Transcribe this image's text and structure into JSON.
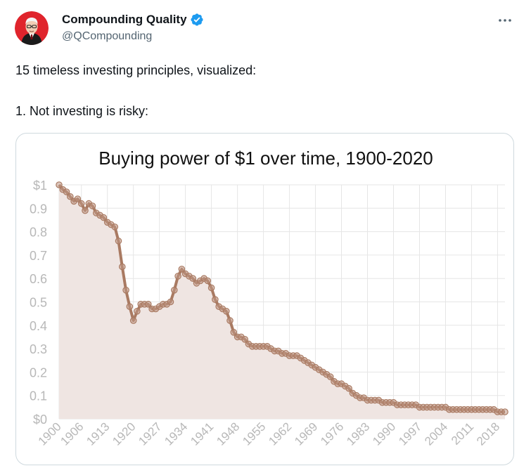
{
  "author": {
    "name": "Compounding Quality",
    "handle": "@QCompounding",
    "verified": true,
    "avatar_icon": "buffett-portrait-avatar",
    "avatar_bg": "#e0242c"
  },
  "menu": {
    "icon": "more-horizontal-icon"
  },
  "tweet": {
    "line1": "15 timeless investing principles, visualized:",
    "line2": "1.  Not investing is risky:"
  },
  "colors": {
    "line": "#a97a62",
    "marker": "#c09785",
    "area": "#efe5e2",
    "grid": "#e6e6e6",
    "tick_text": "#b8b8b8",
    "verified": "#1d9bf0"
  },
  "chart_data": {
    "type": "area",
    "title": "Buying power of $1 over time, 1900-2020",
    "xlabel": "",
    "ylabel": "",
    "xlim": [
      1900,
      2020
    ],
    "ylim": [
      0,
      1
    ],
    "grid": true,
    "legend": "none",
    "y_ticks": [
      "$0",
      "0.1",
      "0.2",
      "0.3",
      "0.4",
      "0.5",
      "0.6",
      "0.7",
      "0.8",
      "0.9",
      "$1"
    ],
    "x_ticks": [
      "1900",
      "1906",
      "1913",
      "1920",
      "1927",
      "1934",
      "1941",
      "1948",
      "1955",
      "1962",
      "1969",
      "1976",
      "1983",
      "1990",
      "1997",
      "2004",
      "2011",
      "2018"
    ],
    "series": [
      {
        "x": [
          1900,
          1901,
          1902,
          1903,
          1904,
          1905,
          1906,
          1907,
          1908,
          1909,
          1910,
          1911,
          1912,
          1913,
          1914,
          1915,
          1916,
          1917,
          1918,
          1919,
          1920,
          1921,
          1922,
          1923,
          1924,
          1925,
          1926,
          1927,
          1928,
          1929,
          1930,
          1931,
          1932,
          1933,
          1934,
          1935,
          1936,
          1937,
          1938,
          1939,
          1940,
          1941,
          1942,
          1943,
          1944,
          1945,
          1946,
          1947,
          1948,
          1949,
          1950,
          1951,
          1952,
          1953,
          1954,
          1955,
          1956,
          1957,
          1958,
          1959,
          1960,
          1961,
          1962,
          1963,
          1964,
          1965,
          1966,
          1967,
          1968,
          1969,
          1970,
          1971,
          1972,
          1973,
          1974,
          1975,
          1976,
          1977,
          1978,
          1979,
          1980,
          1981,
          1982,
          1983,
          1984,
          1985,
          1986,
          1987,
          1988,
          1989,
          1990,
          1991,
          1992,
          1993,
          1994,
          1995,
          1996,
          1997,
          1998,
          1999,
          2000,
          2001,
          2002,
          2003,
          2004,
          2005,
          2006,
          2007,
          2008,
          2009,
          2010,
          2011,
          2012,
          2013,
          2014,
          2015,
          2016,
          2017,
          2018,
          2019,
          2020
        ],
        "y": [
          1.0,
          0.98,
          0.97,
          0.95,
          0.93,
          0.94,
          0.92,
          0.89,
          0.92,
          0.91,
          0.88,
          0.87,
          0.86,
          0.84,
          0.83,
          0.82,
          0.76,
          0.65,
          0.55,
          0.48,
          0.42,
          0.46,
          0.49,
          0.49,
          0.49,
          0.47,
          0.47,
          0.48,
          0.49,
          0.49,
          0.5,
          0.55,
          0.61,
          0.64,
          0.62,
          0.61,
          0.6,
          0.58,
          0.59,
          0.6,
          0.59,
          0.56,
          0.51,
          0.48,
          0.47,
          0.46,
          0.42,
          0.37,
          0.35,
          0.35,
          0.34,
          0.32,
          0.31,
          0.31,
          0.31,
          0.31,
          0.31,
          0.3,
          0.29,
          0.29,
          0.28,
          0.28,
          0.27,
          0.27,
          0.27,
          0.26,
          0.25,
          0.24,
          0.23,
          0.22,
          0.21,
          0.2,
          0.19,
          0.18,
          0.16,
          0.15,
          0.15,
          0.14,
          0.13,
          0.11,
          0.1,
          0.09,
          0.09,
          0.08,
          0.08,
          0.08,
          0.08,
          0.07,
          0.07,
          0.07,
          0.07,
          0.06,
          0.06,
          0.06,
          0.06,
          0.06,
          0.06,
          0.05,
          0.05,
          0.05,
          0.05,
          0.05,
          0.05,
          0.05,
          0.05,
          0.04,
          0.04,
          0.04,
          0.04,
          0.04,
          0.04,
          0.04,
          0.04,
          0.04,
          0.04,
          0.04,
          0.04,
          0.04,
          0.03,
          0.03,
          0.03
        ]
      }
    ]
  }
}
